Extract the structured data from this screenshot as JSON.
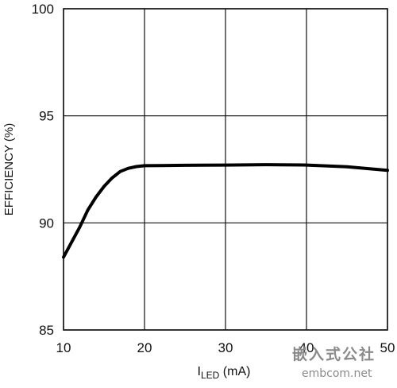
{
  "chart_data": {
    "type": "line",
    "xlabel_main": "I",
    "xlabel_sub": "LED",
    "xlabel_unit": " (mA)",
    "ylabel": "EFFICIENCY (%)",
    "xlim": [
      10,
      50
    ],
    "ylim": [
      85,
      100
    ],
    "xticks": [
      10,
      20,
      30,
      40,
      50
    ],
    "yticks": [
      85,
      90,
      95,
      100
    ],
    "grid": true,
    "series": [
      {
        "points": [
          [
            10.0,
            88.4
          ],
          [
            11.0,
            89.1
          ],
          [
            12.0,
            89.8
          ],
          [
            13.0,
            90.6
          ],
          [
            14.0,
            91.2
          ],
          [
            15.0,
            91.7
          ],
          [
            16.0,
            92.1
          ],
          [
            17.0,
            92.4
          ],
          [
            18.0,
            92.55
          ],
          [
            19.0,
            92.63
          ],
          [
            20.0,
            92.67
          ],
          [
            22.0,
            92.68
          ],
          [
            25.0,
            92.69
          ],
          [
            30.0,
            92.7
          ],
          [
            35.0,
            92.72
          ],
          [
            40.0,
            92.7
          ],
          [
            45.0,
            92.62
          ],
          [
            50.0,
            92.45
          ]
        ]
      }
    ]
  },
  "watermark": {
    "line1": "嵌入式公社",
    "line2": "embcom.net"
  }
}
